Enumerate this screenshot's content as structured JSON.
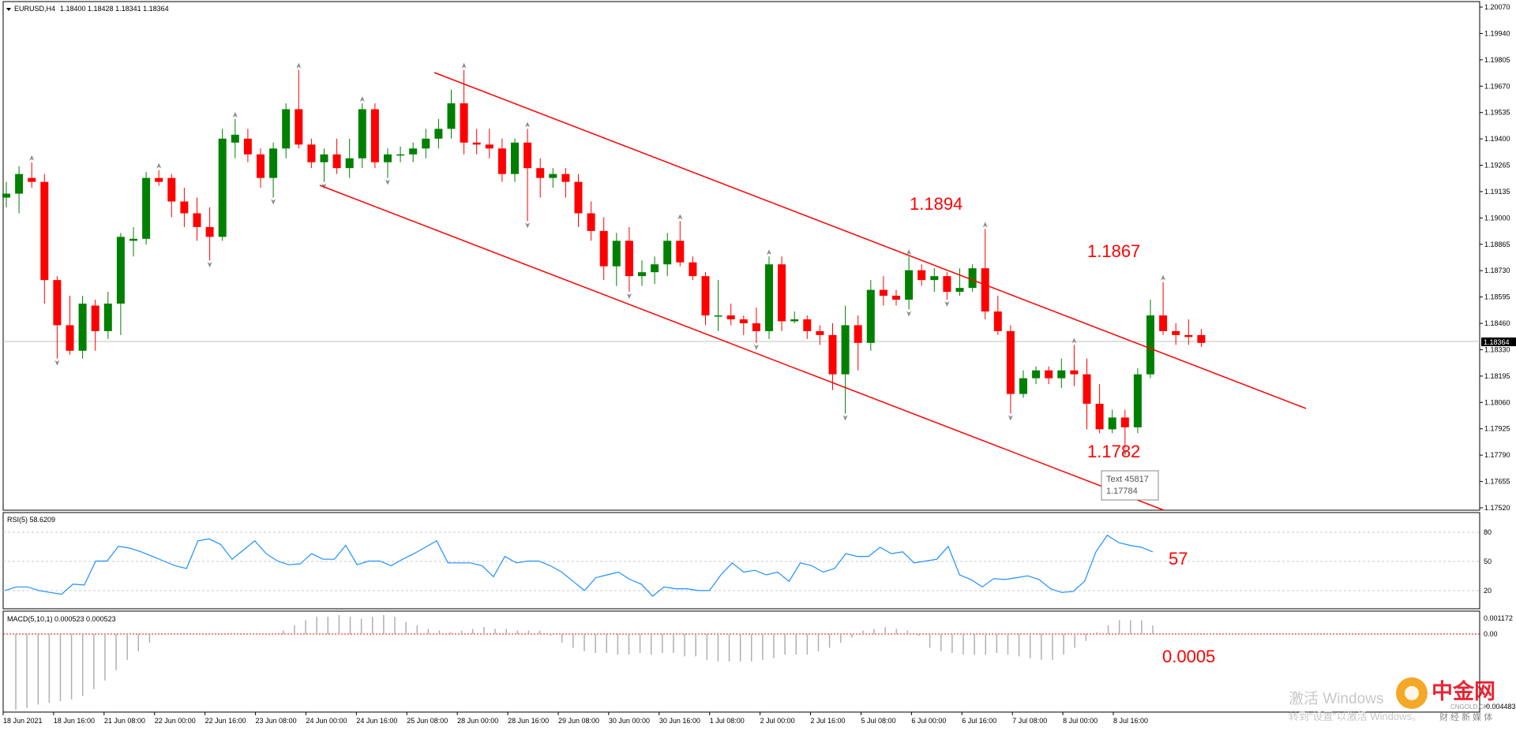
{
  "header": {
    "symbol": "EURUSD,H4",
    "ohlc": "1.18400 1.18428 1.18341 1.18364"
  },
  "price_axis": {
    "labels": [
      "1.20070",
      "1.19940",
      "1.19805",
      "1.19670",
      "1.19535",
      "1.19400",
      "1.19265",
      "1.19135",
      "1.19000",
      "1.18865",
      "1.18730",
      "1.18595",
      "1.18460",
      "1.18330",
      "1.18195",
      "1.18060",
      "1.17925",
      "1.17790",
      "1.17655",
      "1.17520"
    ],
    "current_price": "1.18364"
  },
  "annotations": {
    "high1": "1.1894",
    "high2": "1.1867",
    "low": "1.1782",
    "rsi_note": "57",
    "macd_note": "0.0005"
  },
  "tooltip": {
    "line1": "Text 45817",
    "line2": "1.17784"
  },
  "rsi": {
    "header": "RSI(5) 58.6209",
    "levels": [
      "80",
      "50",
      "20"
    ]
  },
  "macd": {
    "header": "MACD(5,10,1) 0.000523 0.000523",
    "top_label": "0.001172",
    "zero_label": "0.00",
    "bottom_label": "-0.004483"
  },
  "time_axis": [
    "18 Jun 2021",
    "18 Jun 16:00",
    "21 Jun 08:00",
    "22 Jun 00:00",
    "22 Jun 16:00",
    "23 Jun 08:00",
    "24 Jun 00:00",
    "24 Jun 16:00",
    "25 Jun 08:00",
    "28 Jun 00:00",
    "28 Jun 16:00",
    "29 Jun 08:00",
    "30 Jun 00:00",
    "30 Jun 16:00",
    "1 Jul 08:00",
    "2 Jul 00:00",
    "2 Jul 16:00",
    "5 Jul 08:00",
    "6 Jul 00:00",
    "6 Jul 16:00",
    "7 Jul 08:00",
    "8 Jul 00:00",
    "8 Jul 16:00"
  ],
  "watermark": {
    "activate": "激活 Windows",
    "activate_sub": "转到“设置”以激活 Windows。",
    "brand": "中金网",
    "brand_url": "CNGOLD.CN",
    "brand_sub": "财 经 新 媒 体"
  },
  "colors": {
    "up": "#008000",
    "down": "#ff0000",
    "line": "#ff0000",
    "rsi": "#1e90ff",
    "macd": "#b0b0b0"
  },
  "chart_data": {
    "type": "candlestick",
    "ylim": [
      1.1752,
      1.2007
    ],
    "rsi_values": [
      18,
      22,
      22,
      18,
      16,
      14,
      25,
      24,
      50,
      50,
      66,
      64,
      60,
      55,
      50,
      45,
      42,
      72,
      74,
      68,
      52,
      62,
      72,
      58,
      50,
      46,
      47,
      58,
      52,
      52,
      67,
      46,
      50,
      50,
      45,
      52,
      58,
      65,
      72,
      48,
      48,
      48,
      45,
      33,
      55,
      48,
      50,
      50,
      45,
      38,
      28,
      18,
      32,
      35,
      38,
      30,
      25,
      12,
      22,
      20,
      20,
      18,
      18,
      35,
      48,
      38,
      40,
      35,
      38,
      28,
      48,
      45,
      38,
      42,
      58,
      55,
      55,
      65,
      58,
      60,
      48,
      50,
      52,
      66,
      35,
      30,
      22,
      31,
      30,
      32,
      34,
      30,
      20,
      16,
      17,
      28,
      60,
      78,
      70,
      67,
      65,
      60
    ],
    "macd_values": [
      -0.0044,
      -0.0043,
      -0.0041,
      -0.004,
      -0.0039,
      -0.0038,
      -0.0036,
      -0.0032,
      -0.0027,
      -0.0021,
      -0.0015,
      -0.001,
      -0.0005,
      0,
      0,
      0,
      0,
      0,
      0,
      0,
      0,
      0,
      0,
      0,
      0.0002,
      0.0005,
      0.0008,
      0.001,
      0.001,
      0.0011,
      0.001,
      0.0009,
      0.001,
      0.0011,
      0.001,
      0.0007,
      0.0005,
      0.0003,
      0.0002,
      0.0001,
      0.0002,
      0.0003,
      0.0004,
      0.0003,
      0.0003,
      0.0002,
      0.0002,
      0.0002,
      -0.0001,
      -0.0005,
      -0.0008,
      -0.001,
      -0.0011,
      -0.0011,
      -0.0012,
      -0.0012,
      -0.0011,
      -0.0012,
      -0.0011,
      -0.0011,
      -0.0013,
      -0.0013,
      -0.0015,
      -0.0016,
      -0.0016,
      -0.0016,
      -0.0016,
      -0.0015,
      -0.0014,
      -0.0012,
      -0.0012,
      -0.0012,
      -0.001,
      -0.0008,
      -0.0005,
      -0.0002,
      0.0002,
      0.0003,
      0.0004,
      0.0003,
      0.0002,
      -0.0001,
      -0.0008,
      -0.001,
      -0.0011,
      -0.0012,
      -0.0012,
      -0.0012,
      -0.0011,
      -0.0012,
      -0.0013,
      -0.0014,
      -0.0015,
      -0.0015,
      -0.0012,
      -0.0008,
      -0.0004,
      0.0001,
      0.0005,
      0.0008,
      0.0008,
      0.0008,
      0.0005
    ],
    "candles": [
      [
        1.191,
        1.1918,
        1.1905,
        1.1912
      ],
      [
        1.1912,
        1.1926,
        1.1902,
        1.1922
      ],
      [
        1.192,
        1.1928,
        1.1915,
        1.1918
      ],
      [
        1.1918,
        1.1922,
        1.1856,
        1.1868
      ],
      [
        1.1868,
        1.187,
        1.1828,
        1.1845
      ],
      [
        1.1845,
        1.186,
        1.183,
        1.1832
      ],
      [
        1.1832,
        1.186,
        1.1828,
        1.1856
      ],
      [
        1.1855,
        1.1858,
        1.1832,
        1.1842
      ],
      [
        1.1842,
        1.1862,
        1.1838,
        1.1856
      ],
      [
        1.1856,
        1.1892,
        1.184,
        1.189
      ],
      [
        1.1888,
        1.1895,
        1.188,
        1.1889
      ],
      [
        1.1889,
        1.1923,
        1.1886,
        1.192
      ],
      [
        1.192,
        1.1924,
        1.1916,
        1.1918
      ],
      [
        1.192,
        1.1922,
        1.19,
        1.1908
      ],
      [
        1.1908,
        1.1915,
        1.1895,
        1.1902
      ],
      [
        1.1902,
        1.191,
        1.1888,
        1.1895
      ],
      [
        1.1895,
        1.1905,
        1.1878,
        1.189
      ],
      [
        1.189,
        1.1945,
        1.1888,
        1.194
      ],
      [
        1.1938,
        1.195,
        1.193,
        1.1942
      ],
      [
        1.194,
        1.1945,
        1.1928,
        1.1932
      ],
      [
        1.1932,
        1.1935,
        1.1915,
        1.192
      ],
      [
        1.192,
        1.1938,
        1.191,
        1.1935
      ],
      [
        1.1935,
        1.1958,
        1.193,
        1.1955
      ],
      [
        1.1955,
        1.1975,
        1.1935,
        1.1937
      ],
      [
        1.1937,
        1.194,
        1.1925,
        1.1928
      ],
      [
        1.1928,
        1.1935,
        1.1918,
        1.1932
      ],
      [
        1.1932,
        1.194,
        1.1922,
        1.1925
      ],
      [
        1.1925,
        1.194,
        1.192,
        1.193
      ],
      [
        1.193,
        1.1958,
        1.1925,
        1.1955
      ],
      [
        1.1955,
        1.1958,
        1.1925,
        1.1928
      ],
      [
        1.1928,
        1.1935,
        1.192,
        1.1932
      ],
      [
        1.1932,
        1.1936,
        1.1928,
        1.1932
      ],
      [
        1.1932,
        1.1938,
        1.1928,
        1.1935
      ],
      [
        1.1935,
        1.1945,
        1.193,
        1.194
      ],
      [
        1.194,
        1.195,
        1.1935,
        1.1945
      ],
      [
        1.1945,
        1.1965,
        1.194,
        1.1958
      ],
      [
        1.1958,
        1.1975,
        1.1932,
        1.1938
      ],
      [
        1.1938,
        1.1945,
        1.1932,
        1.1937
      ],
      [
        1.1937,
        1.1945,
        1.193,
        1.1935
      ],
      [
        1.1935,
        1.194,
        1.1918,
        1.1922
      ],
      [
        1.1922,
        1.194,
        1.1918,
        1.1938
      ],
      [
        1.1938,
        1.1945,
        1.1898,
        1.1925
      ],
      [
        1.1925,
        1.193,
        1.191,
        1.192
      ],
      [
        1.192,
        1.1925,
        1.1915,
        1.1922
      ],
      [
        1.1922,
        1.1925,
        1.191,
        1.1918
      ],
      [
        1.1918,
        1.1922,
        1.1895,
        1.1902
      ],
      [
        1.1902,
        1.1908,
        1.1888,
        1.1893
      ],
      [
        1.1893,
        1.19,
        1.1868,
        1.1875
      ],
      [
        1.1875,
        1.1892,
        1.1865,
        1.1888
      ],
      [
        1.1888,
        1.1895,
        1.1862,
        1.187
      ],
      [
        1.187,
        1.1878,
        1.1865,
        1.1872
      ],
      [
        1.1872,
        1.188,
        1.1866,
        1.1876
      ],
      [
        1.1876,
        1.1892,
        1.187,
        1.1888
      ],
      [
        1.1888,
        1.1898,
        1.1875,
        1.1877
      ],
      [
        1.1877,
        1.188,
        1.1868,
        1.187
      ],
      [
        1.187,
        1.1872,
        1.1845,
        1.185
      ],
      [
        1.185,
        1.1868,
        1.1842,
        1.185
      ],
      [
        1.185,
        1.1856,
        1.1845,
        1.1848
      ],
      [
        1.1848,
        1.185,
        1.184,
        1.1846
      ],
      [
        1.1846,
        1.1854,
        1.1836,
        1.1842
      ],
      [
        1.1842,
        1.188,
        1.1838,
        1.1876
      ],
      [
        1.1876,
        1.188,
        1.1842,
        1.1847
      ],
      [
        1.1847,
        1.1852,
        1.1846,
        1.1848
      ],
      [
        1.1848,
        1.185,
        1.1838,
        1.1842
      ],
      [
        1.1842,
        1.1845,
        1.1835,
        1.184
      ],
      [
        1.184,
        1.1846,
        1.1812,
        1.182
      ],
      [
        1.182,
        1.1855,
        1.18,
        1.1845
      ],
      [
        1.1845,
        1.185,
        1.1822,
        1.1836
      ],
      [
        1.1836,
        1.1868,
        1.1832,
        1.1863
      ],
      [
        1.1863,
        1.187,
        1.1855,
        1.186
      ],
      [
        1.186,
        1.1863,
        1.1855,
        1.1858
      ],
      [
        1.1858,
        1.188,
        1.1853,
        1.1873
      ],
      [
        1.1873,
        1.1876,
        1.1865,
        1.1868
      ],
      [
        1.1868,
        1.1874,
        1.1862,
        1.187
      ],
      [
        1.187,
        1.1872,
        1.1858,
        1.1862
      ],
      [
        1.1862,
        1.1874,
        1.186,
        1.1864
      ],
      [
        1.1864,
        1.1876,
        1.1862,
        1.1874
      ],
      [
        1.1874,
        1.1894,
        1.1848,
        1.1852
      ],
      [
        1.1852,
        1.186,
        1.184,
        1.1842
      ],
      [
        1.1842,
        1.1845,
        1.18,
        1.181
      ],
      [
        1.181,
        1.1822,
        1.1808,
        1.1818
      ],
      [
        1.1818,
        1.1824,
        1.1815,
        1.1822
      ],
      [
        1.1822,
        1.1824,
        1.1815,
        1.1818
      ],
      [
        1.1818,
        1.1828,
        1.1813,
        1.1822
      ],
      [
        1.1822,
        1.1835,
        1.1814,
        1.182
      ],
      [
        1.182,
        1.1828,
        1.1792,
        1.1805
      ],
      [
        1.1805,
        1.1815,
        1.179,
        1.1792
      ],
      [
        1.1792,
        1.1802,
        1.179,
        1.1798
      ],
      [
        1.1798,
        1.1802,
        1.1782,
        1.1793
      ],
      [
        1.1793,
        1.1823,
        1.179,
        1.182
      ],
      [
        1.182,
        1.1858,
        1.1818,
        1.185
      ],
      [
        1.185,
        1.1867,
        1.184,
        1.1842
      ],
      [
        1.1842,
        1.1846,
        1.1835,
        1.184
      ],
      [
        1.184,
        1.1848,
        1.1835,
        1.1839
      ],
      [
        1.184,
        1.1843,
        1.1834,
        1.1836
      ]
    ]
  }
}
